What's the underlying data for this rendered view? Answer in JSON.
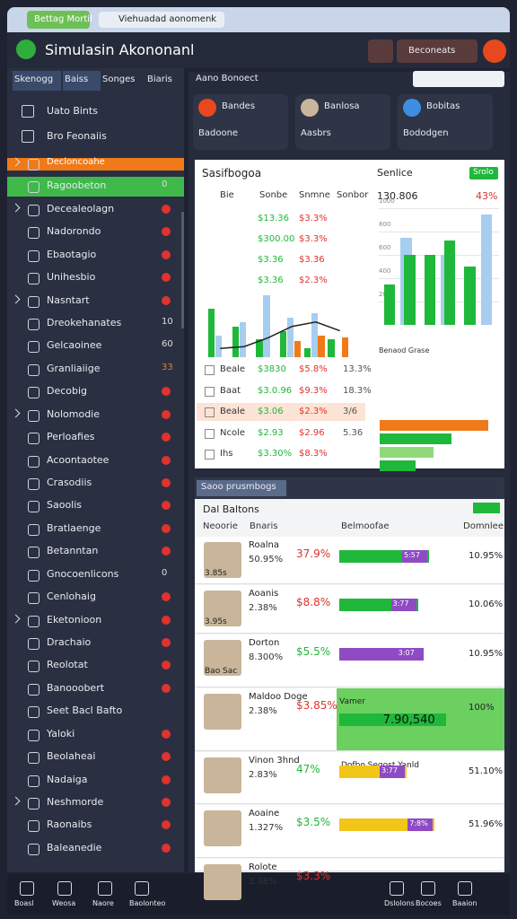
{
  "browser": {
    "tab": "Bettag Mortil",
    "url": "Viehuadad aonomenk"
  },
  "header": {
    "title": "Simulasin Akononanl",
    "button": "Beconeats"
  },
  "tabs": [
    "Skenogg",
    "Baiss",
    "Songes",
    "Biaris"
  ],
  "search": {
    "placeholder": "Aano Bonoect"
  },
  "sidebar": {
    "top": [
      "Uato Bints",
      "Bro Feonaiis"
    ],
    "items": [
      {
        "label": "Decloncoahe",
        "state": "orange",
        "expandable": true
      },
      {
        "label": "Ragoobeton",
        "state": "green",
        "badge": "0"
      },
      {
        "label": "Decealeolagn",
        "expandable": true,
        "alert": true
      },
      {
        "label": "Nadorondo",
        "alert": true
      },
      {
        "label": "Ebaotagio",
        "alert": true
      },
      {
        "label": "Unihesbio",
        "alert": true
      },
      {
        "label": "Nasntart",
        "expandable": true,
        "alert": true
      },
      {
        "label": "Dreokehanates",
        "badge": "10"
      },
      {
        "label": "Gelcaoinee",
        "badge": "60"
      },
      {
        "label": "Granliaiige",
        "badge": "33"
      },
      {
        "label": "Decobig",
        "alert": true
      },
      {
        "label": "Nolomodie",
        "expandable": true,
        "alert": true
      },
      {
        "label": "Perloafies",
        "alert": true
      },
      {
        "label": "Acoontaotee",
        "alert": true
      },
      {
        "label": "Crasodiis",
        "alert": true
      },
      {
        "label": "Saoolis",
        "alert": true
      },
      {
        "label": "Bratlaenge",
        "alert": true
      },
      {
        "label": "Betanntan",
        "alert": true
      },
      {
        "label": "Gnocoenlicons",
        "badge": "0"
      },
      {
        "label": "Cenlohaig",
        "alert": true
      },
      {
        "label": "Eketonioon",
        "expandable": true,
        "alert": true
      },
      {
        "label": "Drachaio",
        "alert": true
      },
      {
        "label": "Reolotat",
        "alert": true
      },
      {
        "label": "Banooobert",
        "alert": true
      },
      {
        "label": "Seet Bacl Bafto"
      },
      {
        "label": "Yaloki",
        "alert": true
      },
      {
        "label": "Beolaheai",
        "alert": true
      },
      {
        "label": "Nadaiga",
        "alert": true
      },
      {
        "label": "Neshmorde",
        "expandable": true,
        "alert": true
      },
      {
        "label": "Raonaibs",
        "alert": true
      },
      {
        "label": "Baleanedie",
        "alert": true
      }
    ]
  },
  "cards": [
    {
      "name": "Bandes",
      "sub": "Badoone"
    },
    {
      "name": "Banlosa",
      "sub": "Aasbrs"
    },
    {
      "name": "Bobitas",
      "sub": "Bododgen"
    }
  ],
  "panel1": {
    "title": "Sasifbogoa",
    "columns": [
      "Bie",
      "Sonbe",
      "Snmne",
      "Sonbor"
    ],
    "top_rows": [
      [
        "$13.36",
        "$3.3%"
      ],
      [
        "$300.00",
        "$3.3%"
      ],
      [
        "$3.36",
        "$3.36"
      ],
      [
        "$3.36",
        "$2.3%"
      ]
    ],
    "rows": [
      [
        "Beale",
        "$3830",
        "$5.8%",
        "13.3%"
      ],
      [
        "Baat",
        "$3.0.96",
        "$9.3%",
        "18.3%"
      ],
      [
        "Beale",
        "$3.06",
        "$2.3%",
        "3/6"
      ],
      [
        "Ncole",
        "$2.93",
        "$2.96",
        "5.36"
      ],
      [
        "Ihs",
        "$3.30%",
        "$8.3%",
        ""
      ]
    ],
    "chart": {
      "type": "bar",
      "ylim": [
        0,
        100
      ],
      "series": [
        {
          "color": "#1fb83a",
          "values": [
            55,
            35,
            20,
            30,
            10,
            20
          ]
        },
        {
          "color": "#a7cdef",
          "values": [
            25,
            40,
            70,
            45,
            50,
            0
          ]
        },
        {
          "color": "#f07a1a",
          "values": [
            0,
            0,
            0,
            18,
            25,
            22
          ]
        }
      ],
      "line": {
        "color": "#222",
        "values": [
          10,
          12,
          22,
          35,
          40,
          30
        ]
      }
    },
    "side": {
      "title": "Senlice",
      "value": "130.806",
      "change": "43%",
      "badge": "Srolo"
    },
    "side_chart": {
      "type": "bar",
      "ylim": [
        0,
        1000
      ],
      "yticks": [
        200,
        400,
        600,
        800,
        1000
      ],
      "series": [
        {
          "color": "#a7cdef",
          "values": [
            0,
            750,
            0,
            600,
            0,
            950
          ]
        },
        {
          "color": "#1fb83a",
          "values": [
            350,
            600,
            600,
            720,
            500,
            0
          ]
        }
      ]
    },
    "side_bars": {
      "title": "Benaod Grase",
      "values": [
        90,
        60,
        45,
        30
      ],
      "colors": [
        "#f07a1a",
        "#1fb83a",
        "#8fd97a",
        "#1fb83a"
      ]
    }
  },
  "panel2": {
    "title": "Saoo prusmbogs",
    "sub": "Dal Baltons",
    "columns": [
      "Neoorie",
      "Bnaris",
      "Belmoofae",
      "Domnlee"
    ],
    "rows": [
      {
        "name": "Roalna",
        "time": "3.85s",
        "a": "50.95%",
        "b": "37.9%",
        "bar": 80,
        "bar_label": "5:57",
        "color": "#1fb83a",
        "right": "10.95%"
      },
      {
        "name": "Aoanis",
        "time": "3.95s",
        "a": "2.38%",
        "b": "$8.8%",
        "bar": 70,
        "bar_label": "3:77",
        "color": "#1fb83a",
        "right": "10.06%"
      },
      {
        "name": "Dorton",
        "time": "Bao Sac",
        "a": "8.300%",
        "b": "$5.5%",
        "bar": 75,
        "bar_label": "3:07",
        "color": "#8e4bc4",
        "right": "10.95%"
      },
      {
        "name": "Maldoo Doge",
        "time": "Vamer",
        "a": "2.38%",
        "b": "$3.85%",
        "bar": 95,
        "bar_label": "7.90,540",
        "color": "#1fb83a",
        "right": "100%"
      },
      {
        "name": "Vinon 3hnd",
        "time": "Dofbo Segost Yanld",
        "a": "2.83%",
        "b": "47%",
        "bar": 60,
        "bar_label": "3:77",
        "color": "#f2c619",
        "right": "51.10%"
      },
      {
        "name": "Aoaine",
        "time": "",
        "a": "1.327%",
        "b": "$3.5%",
        "bar": 85,
        "bar_label": "7:8%",
        "color": "#f2c619",
        "right": "51.96%"
      },
      {
        "name": "Rolote",
        "time": "",
        "a": "3.38%",
        "b": "$3.3%",
        "bar": 0,
        "bar_label": "",
        "color": "#1fb83a",
        "right": ""
      }
    ]
  },
  "nav": [
    "Boasl",
    "Weosa",
    "Naore",
    "Baolonteo",
    "Dslolons",
    "Bocoes",
    "Baaion"
  ]
}
